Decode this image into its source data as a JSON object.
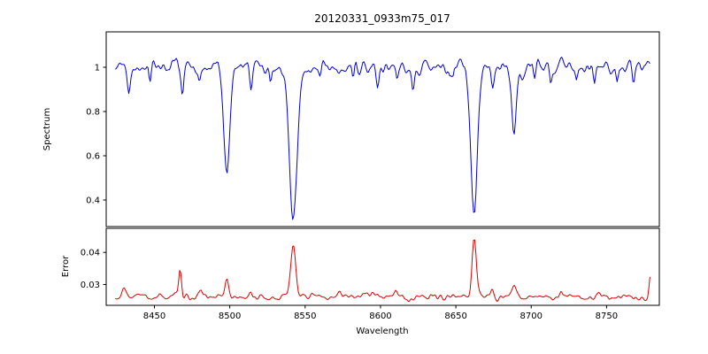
{
  "figure": {
    "background": "#ffffff",
    "spectrum_color": "#0000dd",
    "error_color": "#dd0000"
  },
  "chart_data": {
    "type": "line",
    "title": "20120331_0933m75_017",
    "xlabel": "Wavelength",
    "xlim": [
      8418,
      8785
    ],
    "x_data_range": [
      8424,
      8779
    ],
    "x_ticks": [
      8450,
      8500,
      8550,
      8600,
      8650,
      8700,
      8750
    ],
    "grid": false,
    "legend": "none",
    "panels": [
      {
        "name": "spectrum",
        "ylabel": "Spectrum",
        "ylim": [
          0.28,
          1.16
        ],
        "y_ticks": [
          0.4,
          0.6,
          0.8,
          1.0
        ],
        "series": [
          {
            "name": "spectrum",
            "color": "#0000dd",
            "step": 0.75,
            "baseline": 1.0,
            "noise": {
              "seed": 20120331,
              "sigma": 0.028,
              "smooth": 2
            },
            "wiggle": {
              "amplitude": 0.01,
              "period": 23
            },
            "features": [
              {
                "center": 8498.0,
                "amplitude": -0.48,
                "sigma": 1.9
              },
              {
                "center": 8542.1,
                "amplitude": -0.68,
                "sigma": 2.6
              },
              {
                "center": 8662.1,
                "amplitude": -0.66,
                "sigma": 2.2
              },
              {
                "center": 8688.6,
                "amplitude": -0.29,
                "sigma": 1.4
              },
              {
                "center": 8433.0,
                "amplitude": -0.1,
                "sigma": 0.9
              },
              {
                "center": 8447.0,
                "amplitude": -0.07,
                "sigma": 0.8
              },
              {
                "center": 8468.5,
                "amplitude": -0.16,
                "sigma": 0.9
              },
              {
                "center": 8480.0,
                "amplitude": -0.06,
                "sigma": 0.8
              },
              {
                "center": 8514.0,
                "amplitude": -0.11,
                "sigma": 0.9
              },
              {
                "center": 8527.0,
                "amplitude": -0.07,
                "sigma": 0.7
              },
              {
                "center": 8560.0,
                "amplitude": -0.06,
                "sigma": 0.8
              },
              {
                "center": 8582.0,
                "amplitude": -0.08,
                "sigma": 0.8
              },
              {
                "center": 8598.0,
                "amplitude": -0.09,
                "sigma": 0.9
              },
              {
                "center": 8611.0,
                "amplitude": -0.06,
                "sigma": 0.7
              },
              {
                "center": 8621.5,
                "amplitude": -0.08,
                "sigma": 0.8
              },
              {
                "center": 8648.0,
                "amplitude": -0.06,
                "sigma": 0.7
              },
              {
                "center": 8674.5,
                "amplitude": -0.12,
                "sigma": 0.9
              },
              {
                "center": 8702.0,
                "amplitude": -0.07,
                "sigma": 0.8
              },
              {
                "center": 8713.0,
                "amplitude": -0.09,
                "sigma": 0.8
              },
              {
                "center": 8730.0,
                "amplitude": -0.06,
                "sigma": 0.7
              },
              {
                "center": 8742.0,
                "amplitude": -0.07,
                "sigma": 0.8
              },
              {
                "center": 8757.0,
                "amplitude": -0.06,
                "sigma": 0.7
              },
              {
                "center": 8768.0,
                "amplitude": -0.08,
                "sigma": 0.8
              }
            ]
          }
        ]
      },
      {
        "name": "error",
        "ylabel": "Error",
        "ylim": [
          0.0235,
          0.0475
        ],
        "y_ticks": [
          0.03,
          0.04
        ],
        "series": [
          {
            "name": "error",
            "color": "#dd0000",
            "step": 0.75,
            "baseline": 0.0262,
            "noise": {
              "seed": 933,
              "sigma": 0.0009,
              "smooth": 2
            },
            "wiggle": {
              "amplitude": 0.0003,
              "period": 19
            },
            "features": [
              {
                "center": 8430.0,
                "amplitude": 0.004,
                "sigma": 1.2
              },
              {
                "center": 8467.0,
                "amplitude": 0.0085,
                "sigma": 0.9
              },
              {
                "center": 8498.0,
                "amplitude": 0.006,
                "sigma": 1.1
              },
              {
                "center": 8542.1,
                "amplitude": 0.017,
                "sigma": 1.6
              },
              {
                "center": 8662.1,
                "amplitude": 0.0185,
                "sigma": 1.4
              },
              {
                "center": 8688.6,
                "amplitude": 0.0035,
                "sigma": 1.1
              },
              {
                "center": 8779.0,
                "amplitude": 0.0065,
                "sigma": 0.8
              },
              {
                "center": 8481.0,
                "amplitude": 0.0015,
                "sigma": 1.0
              },
              {
                "center": 8514.0,
                "amplitude": 0.0018,
                "sigma": 1.0
              },
              {
                "center": 8573.0,
                "amplitude": 0.0012,
                "sigma": 1.0
              },
              {
                "center": 8610.0,
                "amplitude": 0.0015,
                "sigma": 0.9
              },
              {
                "center": 8640.0,
                "amplitude": 0.0012,
                "sigma": 0.9
              },
              {
                "center": 8674.0,
                "amplitude": 0.0018,
                "sigma": 1.0
              },
              {
                "center": 8720.0,
                "amplitude": 0.0015,
                "sigma": 1.0
              },
              {
                "center": 8745.0,
                "amplitude": 0.0012,
                "sigma": 0.9
              }
            ]
          }
        ]
      }
    ]
  }
}
